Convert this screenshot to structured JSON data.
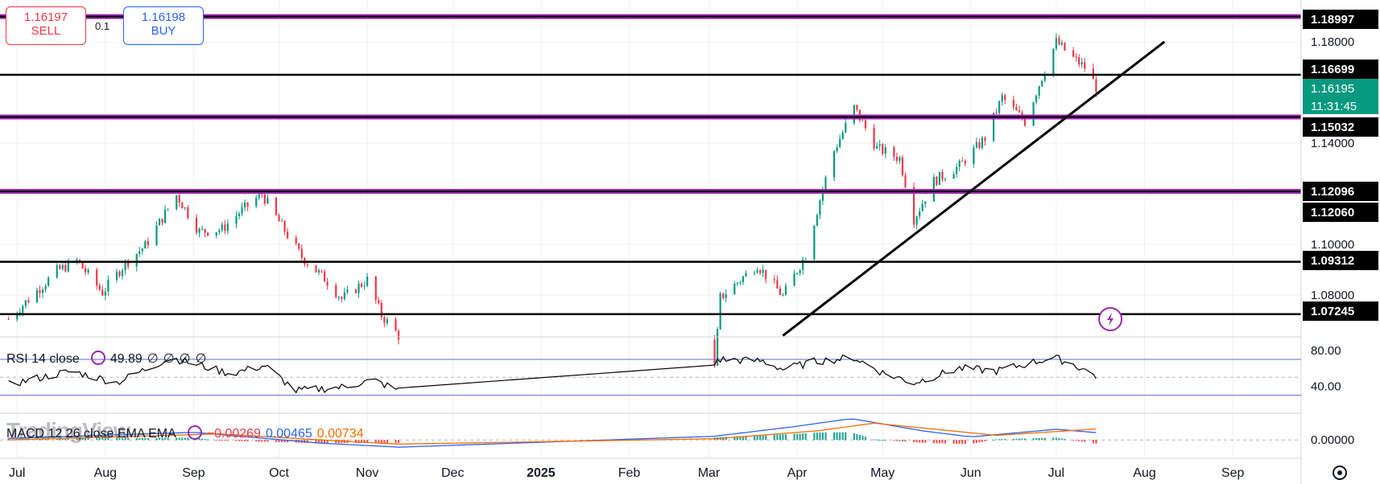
{
  "trade": {
    "sell_price": "1.16197",
    "sell_label": "SELL",
    "buy_price": "1.16198",
    "buy_label": "BUY",
    "spread": "0.1"
  },
  "watermark": "TradingView",
  "colors": {
    "up": "#089981",
    "down": "#f23645",
    "purple": "#9c27b0",
    "black": "#000000",
    "rsi": "#000000",
    "macd": "#2962ff",
    "signal": "#ff6d00"
  },
  "rsi": {
    "label": "RSI 14 close",
    "value": "49.89",
    "nulls": [
      "∅",
      "∅",
      "∅",
      "∅"
    ]
  },
  "macd": {
    "label": "MACD 12 26 close EMA EMA",
    "hist": "−0.00269",
    "macd": "0.00465",
    "signal": "0.00734"
  },
  "chart_data": [
    {
      "type": "candlestick",
      "pane": "price",
      "ylim": [
        1.0635,
        1.1965
      ],
      "y_ticks": [
        "1.18000",
        "1.14000",
        "1.10000",
        "1.08000"
      ],
      "price_tags": [
        {
          "label": "1.18997",
          "style": "black"
        },
        {
          "label": "1.16699",
          "style": "black"
        },
        {
          "label": "1.16195",
          "sub": "11:31:45",
          "style": "current"
        },
        {
          "label": "1.15032",
          "style": "black"
        },
        {
          "label": "1.12096",
          "style": "black"
        },
        {
          "label": "1.12060",
          "style": "black"
        },
        {
          "label": "1.09312",
          "style": "black"
        },
        {
          "label": "1.07245",
          "style": "black"
        }
      ],
      "horizontal_lines": [
        {
          "y": 1.18997,
          "kind": "purple"
        },
        {
          "y": 1.16699,
          "kind": "black"
        },
        {
          "y": 1.15032,
          "kind": "purple"
        },
        {
          "y": 1.12096,
          "kind": "purple"
        },
        {
          "y": 1.09312,
          "kind": "black"
        },
        {
          "y": 1.07245,
          "kind": "black"
        }
      ],
      "trendline": {
        "from": [
          "2025-03-27",
          1.064
        ],
        "to": [
          "2025-08-08",
          1.18
        ]
      },
      "anchors": [
        [
          "2024-06-28",
          1.0705
        ],
        [
          "2024-07-15",
          1.0895
        ],
        [
          "2024-07-22",
          1.0935
        ],
        [
          "2024-07-31",
          1.081
        ],
        [
          "2024-08-08",
          1.0925
        ],
        [
          "2024-08-15",
          1.0995
        ],
        [
          "2024-08-26",
          1.1195
        ],
        [
          "2024-09-03",
          1.105
        ],
        [
          "2024-09-11",
          1.106
        ],
        [
          "2024-09-17",
          1.1125
        ],
        [
          "2024-09-25",
          1.12
        ],
        [
          "2024-10-01",
          1.109
        ],
        [
          "2024-10-09",
          1.095
        ],
        [
          "2024-10-18",
          1.0855
        ],
        [
          "2024-10-23",
          1.0785
        ],
        [
          "2024-11-01",
          1.086
        ],
        [
          "2024-11-06",
          1.072
        ],
        [
          "2024-11-12",
          1.064
        ],
        [
          "2025-03-03",
          1.051
        ],
        [
          "2025-03-05",
          1.079
        ],
        [
          "2025-03-18",
          1.092
        ],
        [
          "2025-03-27",
          1.0795
        ],
        [
          "2025-04-04",
          1.096
        ],
        [
          "2025-04-10",
          1.122
        ],
        [
          "2025-04-14",
          1.137
        ],
        [
          "2025-04-21",
          1.154
        ],
        [
          "2025-04-29",
          1.138
        ],
        [
          "2025-05-07",
          1.134
        ],
        [
          "2025-05-12",
          1.11
        ],
        [
          "2025-05-19",
          1.125
        ],
        [
          "2025-05-28",
          1.131
        ],
        [
          "2025-06-06",
          1.142
        ],
        [
          "2025-06-12",
          1.158
        ],
        [
          "2025-06-20",
          1.1485
        ],
        [
          "2025-06-27",
          1.169
        ],
        [
          "2025-07-01",
          1.18
        ],
        [
          "2025-07-07",
          1.1735
        ],
        [
          "2025-07-12",
          1.169
        ],
        [
          "2025-07-15",
          1.162
        ]
      ]
    },
    {
      "type": "line",
      "pane": "rsi",
      "ylim": [
        10,
        95
      ],
      "y_ticks": [
        "80.00",
        "40.00"
      ],
      "bands": [
        70,
        30
      ],
      "anchors": [
        [
          "2024-06-28",
          42
        ],
        [
          "2024-07-20",
          57
        ],
        [
          "2024-08-05",
          44
        ],
        [
          "2024-08-24",
          72
        ],
        [
          "2024-09-14",
          54
        ],
        [
          "2024-09-26",
          63
        ],
        [
          "2024-10-07",
          35
        ],
        [
          "2024-10-23",
          39
        ],
        [
          "2024-11-03",
          47
        ],
        [
          "2024-11-13",
          34
        ],
        [
          "2024-12-20",
          44
        ],
        [
          "2025-01-10",
          32
        ],
        [
          "2025-02-05",
          51
        ],
        [
          "2025-03-01",
          53
        ],
        [
          "2025-03-04",
          70
        ],
        [
          "2025-03-20",
          68
        ],
        [
          "2025-03-27",
          59
        ],
        [
          "2025-04-08",
          68
        ],
        [
          "2025-04-21",
          72
        ],
        [
          "2025-05-01",
          55
        ],
        [
          "2025-05-12",
          44
        ],
        [
          "2025-05-28",
          60
        ],
        [
          "2025-06-10",
          57
        ],
        [
          "2025-06-30",
          72
        ],
        [
          "2025-07-06",
          66
        ],
        [
          "2025-07-16",
          50
        ]
      ]
    },
    {
      "type": "macd",
      "pane": "macd",
      "ylim": [
        -0.012,
        0.0175
      ],
      "y_ticks": [
        "0.00000"
      ],
      "series": [
        {
          "name": "MACD",
          "anchors": [
            [
              "2024-06-28",
              0.001
            ],
            [
              "2024-09-01",
              0.005
            ],
            [
              "2024-10-15",
              -0.002
            ],
            [
              "2024-11-15",
              -0.005
            ],
            [
              "2024-12-10",
              -0.004
            ],
            [
              "2025-01-20",
              -0.002
            ],
            [
              "2025-03-01",
              0.002
            ],
            [
              "2025-04-01",
              0.009
            ],
            [
              "2025-04-20",
              0.014
            ],
            [
              "2025-05-15",
              0.006
            ],
            [
              "2025-06-01",
              0.002
            ],
            [
              "2025-07-01",
              0.007
            ],
            [
              "2025-07-16",
              0.00465
            ]
          ]
        },
        {
          "name": "Signal",
          "anchors": [
            [
              "2024-06-28",
              0.0
            ],
            [
              "2024-09-10",
              0.004
            ],
            [
              "2024-10-25",
              -0.001
            ],
            [
              "2024-11-25",
              -0.004
            ],
            [
              "2024-12-20",
              -0.004
            ],
            [
              "2025-01-30",
              -0.002
            ],
            [
              "2025-03-05",
              0.001
            ],
            [
              "2025-04-08",
              0.006
            ],
            [
              "2025-04-28",
              0.011
            ],
            [
              "2025-05-25",
              0.006
            ],
            [
              "2025-06-10",
              0.003
            ],
            [
              "2025-07-05",
              0.006
            ],
            [
              "2025-07-16",
              0.00734
            ]
          ]
        }
      ]
    }
  ],
  "x_axis": {
    "labels": [
      {
        "text": "Jul",
        "date": "2024-07-01"
      },
      {
        "text": "Aug",
        "date": "2024-08-01"
      },
      {
        "text": "Sep",
        "date": "2024-09-01"
      },
      {
        "text": "Oct",
        "date": "2024-10-01"
      },
      {
        "text": "Nov",
        "date": "2024-11-01"
      },
      {
        "text": "Dec",
        "date": "2024-12-01"
      },
      {
        "text": "2025",
        "date": "2025-01-01",
        "bold": true
      },
      {
        "text": "Feb",
        "date": "2025-02-01"
      },
      {
        "text": "Mar",
        "date": "2025-03-01"
      },
      {
        "text": "Apr",
        "date": "2025-04-01"
      },
      {
        "text": "May",
        "date": "2025-05-01"
      },
      {
        "text": "Jun",
        "date": "2025-06-01"
      },
      {
        "text": "Jul",
        "date": "2025-07-01"
      },
      {
        "text": "Aug",
        "date": "2025-08-01"
      },
      {
        "text": "Sep",
        "date": "2025-09-01"
      }
    ],
    "range": [
      "2024-06-25",
      "2025-09-25"
    ]
  }
}
